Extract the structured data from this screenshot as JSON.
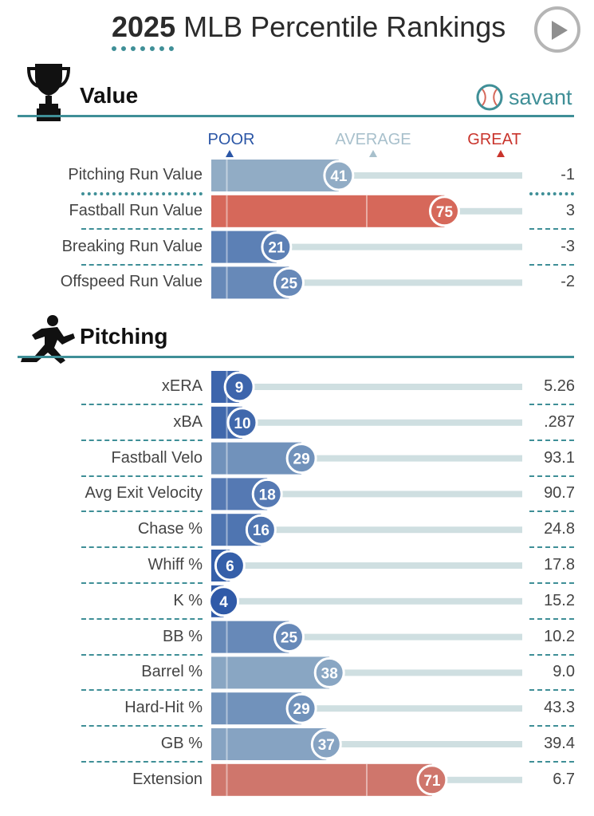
{
  "header": {
    "year": "2025",
    "title": "MLB Percentile Rankings",
    "play_icon": "play-icon"
  },
  "sections": {
    "value": {
      "title": "Value",
      "icon": "trophy-icon"
    },
    "pitching": {
      "title": "Pitching",
      "icon": "pitcher-icon"
    }
  },
  "savant": {
    "label": "savant",
    "icon": "baseball-icon"
  },
  "legend": {
    "poor": "POOR",
    "average": "AVERAGE",
    "great": "GREAT"
  },
  "colors": {
    "accent": "#3f8f97",
    "poor": "#2b56a6",
    "average": "#a8c0cc",
    "great": "#d6685a",
    "track": "#cfdfe1"
  },
  "chart_data": [
    {
      "type": "bar",
      "title": "Value",
      "xlim": [
        0,
        100
      ],
      "categories": [
        "Pitching Run Value",
        "Fastball Run Value",
        "Breaking Run Value",
        "Offspeed Run Value"
      ],
      "values": [
        41,
        75,
        21,
        25
      ],
      "stat_values": [
        "-1",
        "3",
        "-3",
        "-2"
      ],
      "highlighted_index": 0
    },
    {
      "type": "bar",
      "title": "Pitching",
      "xlim": [
        0,
        100
      ],
      "categories": [
        "xERA",
        "xBA",
        "Fastball Velo",
        "Avg Exit Velocity",
        "Chase %",
        "Whiff %",
        "K %",
        "BB %",
        "Barrel %",
        "Hard-Hit %",
        "GB %",
        "Extension"
      ],
      "values": [
        9,
        10,
        29,
        18,
        16,
        6,
        4,
        25,
        38,
        29,
        37,
        71
      ],
      "stat_values": [
        "5.26",
        ".287",
        "93.1",
        "90.7",
        "24.8",
        "17.8",
        "15.2",
        "10.2",
        "9.0",
        "43.3",
        "39.4",
        "6.7"
      ]
    }
  ]
}
